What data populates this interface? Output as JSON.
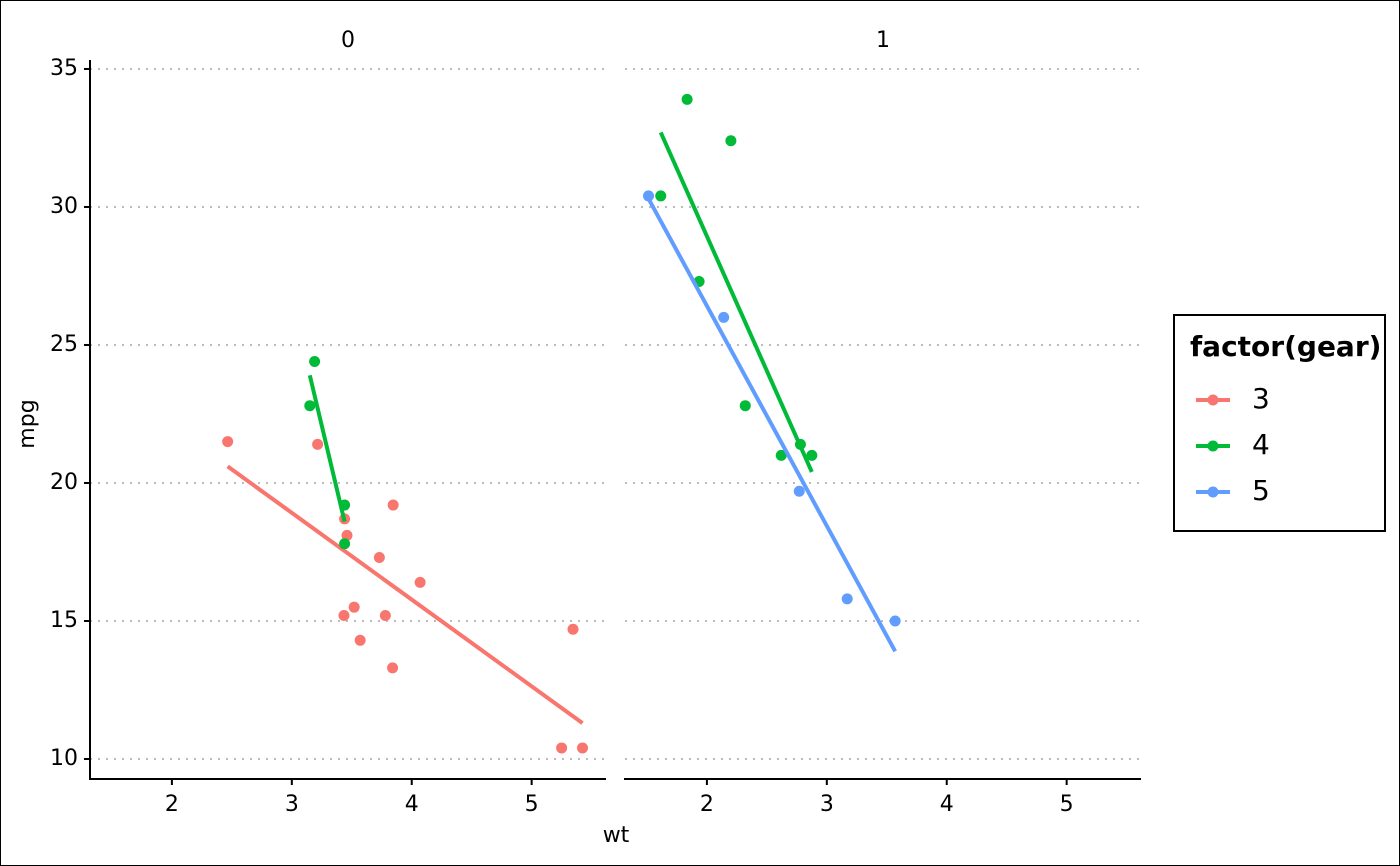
{
  "chart_data": {
    "type": "scatter",
    "x_label": "wt",
    "y_label": "mpg",
    "legend_title": "factor(gear)",
    "xlim": [
      1.317,
      5.62
    ],
    "ylim": [
      9.275,
      35.325
    ],
    "xticks": [
      2,
      3,
      4,
      5
    ],
    "yticks": [
      10,
      15,
      20,
      25,
      30,
      35
    ],
    "grid": true,
    "panels": [
      {
        "title": "0",
        "series": [
          {
            "name": "3",
            "color": "#f8766d",
            "x": [
              3.215,
              3.44,
              3.46,
              3.57,
              4.07,
              3.73,
              3.78,
              5.25,
              5.424,
              5.345,
              2.465,
              3.52,
              3.435,
              3.84,
              3.845
            ],
            "values": [
              21.4,
              18.7,
              18.1,
              14.3,
              16.4,
              17.3,
              15.2,
              10.4,
              10.4,
              14.7,
              21.5,
              15.5,
              15.2,
              13.3,
              19.2
            ],
            "fit": {
              "x": [
                2.465,
                5.424
              ],
              "values": [
                20.6,
                11.3
              ]
            }
          },
          {
            "name": "4",
            "color": "#00ba38",
            "x": [
              3.19,
              3.15,
              3.44,
              3.44
            ],
            "values": [
              24.4,
              22.8,
              19.2,
              17.8
            ],
            "fit": {
              "x": [
                3.15,
                3.44
              ],
              "values": [
                23.9,
                18.6
              ]
            }
          }
        ]
      },
      {
        "title": "1",
        "series": [
          {
            "name": "4",
            "color": "#00ba38",
            "x": [
              2.62,
              2.875,
              2.32,
              2.2,
              1.615,
              1.835,
              1.935,
              2.78
            ],
            "values": [
              21,
              21,
              22.8,
              32.4,
              30.4,
              33.9,
              27.3,
              21.4
            ],
            "fit": {
              "x": [
                1.615,
                2.875
              ],
              "values": [
                32.7,
                20.4
              ]
            }
          },
          {
            "name": "5",
            "color": "#619cff",
            "x": [
              2.14,
              1.513,
              3.17,
              2.77,
              3.57
            ],
            "values": [
              26,
              30.4,
              15.8,
              19.7,
              15
            ],
            "fit": {
              "x": [
                1.513,
                3.57
              ],
              "values": [
                30.3,
                13.9
              ]
            }
          }
        ]
      }
    ]
  }
}
